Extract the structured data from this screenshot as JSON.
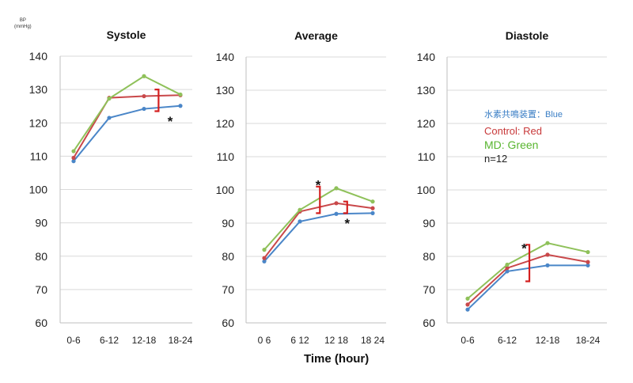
{
  "figure": {
    "unit_label_line1": "BP",
    "unit_label_line2": "(mmHg)",
    "shared_xlabel": "Time (hour)"
  },
  "legend": {
    "blue": "水素共鳴装置：Blue",
    "red": "Control: Red",
    "green": "MD: Green",
    "n": "n=12"
  },
  "colors": {
    "blue": "#4a86c8",
    "red": "#c9484a",
    "green": "#8fc15a",
    "bracket": "#d42020",
    "grid": "#d9d9d9"
  },
  "chart_data": [
    {
      "type": "line",
      "title": "Systole",
      "categories": [
        "0-6",
        "6-12",
        "12-18",
        "18-24"
      ],
      "ylim": [
        60,
        140
      ],
      "yticks": [
        "60",
        "70",
        "80",
        "90",
        "100",
        "110",
        "120",
        "130",
        "140"
      ],
      "grid": true,
      "series": [
        {
          "color_key": "blue",
          "values": [
            108.5,
            121.5,
            124.2,
            125.1
          ]
        },
        {
          "color_key": "red",
          "values": [
            109.5,
            127.5,
            128,
            128.3
          ]
        },
        {
          "color_key": "green",
          "values": [
            111.5,
            127.3,
            134,
            128.5
          ]
        }
      ],
      "annotations": [
        {
          "type": "bracket",
          "x": 2.4,
          "y1": 123.5,
          "y2": 130
        },
        {
          "type": "star",
          "text": "*",
          "x": 2.72,
          "y": 120.5
        }
      ]
    },
    {
      "type": "line",
      "title": "Average",
      "categories": [
        "0 6",
        "6 12",
        "12 18",
        "18 24"
      ],
      "ylim": [
        60,
        140
      ],
      "yticks": [
        "60",
        "70",
        "80",
        "90",
        "100",
        "110",
        "120",
        "130",
        "140"
      ],
      "grid": true,
      "series": [
        {
          "color_key": "blue",
          "values": [
            78.5,
            90.5,
            92.8,
            93
          ]
        },
        {
          "color_key": "red",
          "values": [
            79.5,
            93.5,
            96,
            94.5
          ]
        },
        {
          "color_key": "green",
          "values": [
            82,
            94,
            100.5,
            96.5
          ]
        }
      ],
      "annotations": [
        {
          "type": "bracket",
          "x": 1.55,
          "y1": 93,
          "y2": 101
        },
        {
          "type": "bracket",
          "x": 2.3,
          "y1": 93,
          "y2": 96.5
        },
        {
          "type": "star",
          "text": "*",
          "x": 1.5,
          "y": 101.5
        },
        {
          "type": "star",
          "text": "*",
          "x": 2.3,
          "y": 90
        }
      ]
    },
    {
      "type": "line",
      "title": "Diastole",
      "categories": [
        "0-6",
        "6-12",
        "12-18",
        "18-24"
      ],
      "ylim": [
        60,
        140
      ],
      "yticks": [
        "60",
        "70",
        "80",
        "90",
        "100",
        "110",
        "120",
        "130",
        "140"
      ],
      "grid": true,
      "series": [
        {
          "color_key": "blue",
          "values": [
            64,
            75.5,
            77.3,
            77.3
          ]
        },
        {
          "color_key": "red",
          "values": [
            65.5,
            76.5,
            80.5,
            78.3
          ]
        },
        {
          "color_key": "green",
          "values": [
            67.3,
            77.5,
            84,
            81.3
          ]
        }
      ],
      "annotations": [
        {
          "type": "bracket",
          "x": 1.55,
          "y1": 72.5,
          "y2": 83.5
        },
        {
          "type": "star",
          "text": "*",
          "x": 1.42,
          "y": 82.5
        }
      ]
    }
  ]
}
